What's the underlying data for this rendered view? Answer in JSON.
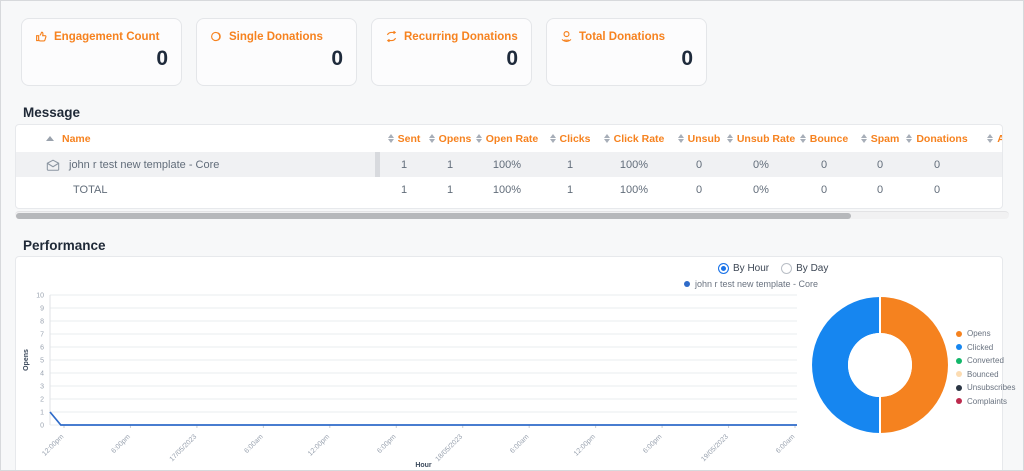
{
  "stats": [
    {
      "label": "Engagement Count",
      "value": "0",
      "icon": "thumbs-up-icon"
    },
    {
      "label": "Single Donations",
      "value": "0",
      "icon": "coin-icon"
    },
    {
      "label": "Recurring Donations",
      "value": "0",
      "icon": "recurring-arrows-icon"
    },
    {
      "label": "Total Donations",
      "value": "0",
      "icon": "hand-coin-icon"
    }
  ],
  "message_section": {
    "title": "Message",
    "table": {
      "columns": [
        "Name",
        "Sent",
        "Opens",
        "Open Rate",
        "Clicks",
        "Click Rate",
        "Unsub",
        "Unsub Rate",
        "Bounce",
        "Spam",
        "Donations",
        "A"
      ],
      "rows": [
        {
          "name": "john r test new template - Core",
          "values": [
            "1",
            "1",
            "100%",
            "1",
            "100%",
            "0",
            "0%",
            "0",
            "0",
            "0",
            ""
          ]
        },
        {
          "name": "TOTAL",
          "values": [
            "1",
            "1",
            "100%",
            "1",
            "100%",
            "0",
            "0%",
            "0",
            "0",
            "0",
            ""
          ]
        }
      ]
    }
  },
  "performance_section": {
    "title": "Performance",
    "mode_options": [
      {
        "label": "By Hour",
        "selected": true
      },
      {
        "label": "By Day",
        "selected": false
      }
    ],
    "series_legend": "john r test new template - Core"
  },
  "chart_data": [
    {
      "type": "line",
      "title": "",
      "xlabel": "Hour",
      "ylabel": "Opens",
      "ylim": [
        0,
        10
      ],
      "y_ticks": [
        0,
        1,
        2,
        3,
        4,
        5,
        6,
        7,
        8,
        9,
        10
      ],
      "x_ticks": [
        "12:00pm",
        "6:00pm",
        "17/05/2023",
        "6:00am",
        "12:00pm",
        "6:00pm",
        "18/05/2023",
        "6:00am",
        "12:00pm",
        "6:00pm",
        "19/05/2023",
        "6:00am"
      ],
      "grid": true,
      "legend_position": "top-right",
      "series": [
        {
          "name": "john r test new template - Core",
          "color": "#2f6bc9",
          "first_point_y": 1,
          "remaining_points_y": 0,
          "num_points": 70
        }
      ]
    },
    {
      "type": "pie",
      "donut": true,
      "legend_position": "right",
      "slices": [
        {
          "label": "Opens",
          "value": 50,
          "color": "#f5821f"
        },
        {
          "label": "Clicked",
          "value": 50,
          "color": "#1686f0"
        },
        {
          "label": "Converted",
          "value": 0,
          "color": "#12b76a"
        },
        {
          "label": "Bounced",
          "value": 0,
          "color": "#fcdcb2"
        },
        {
          "label": "Unsubscribes",
          "value": 0,
          "color": "#2b3544"
        },
        {
          "label": "Complaints",
          "value": 0,
          "color": "#bc2a4d"
        }
      ]
    }
  ],
  "colors": {
    "accent_orange": "#f6821f",
    "value_navy": "#1e2a3b",
    "radio_selected_blue": "#1a73e8",
    "line_blue": "#2f6bc9",
    "scrollbar_thumb": "#b6b8bb"
  }
}
